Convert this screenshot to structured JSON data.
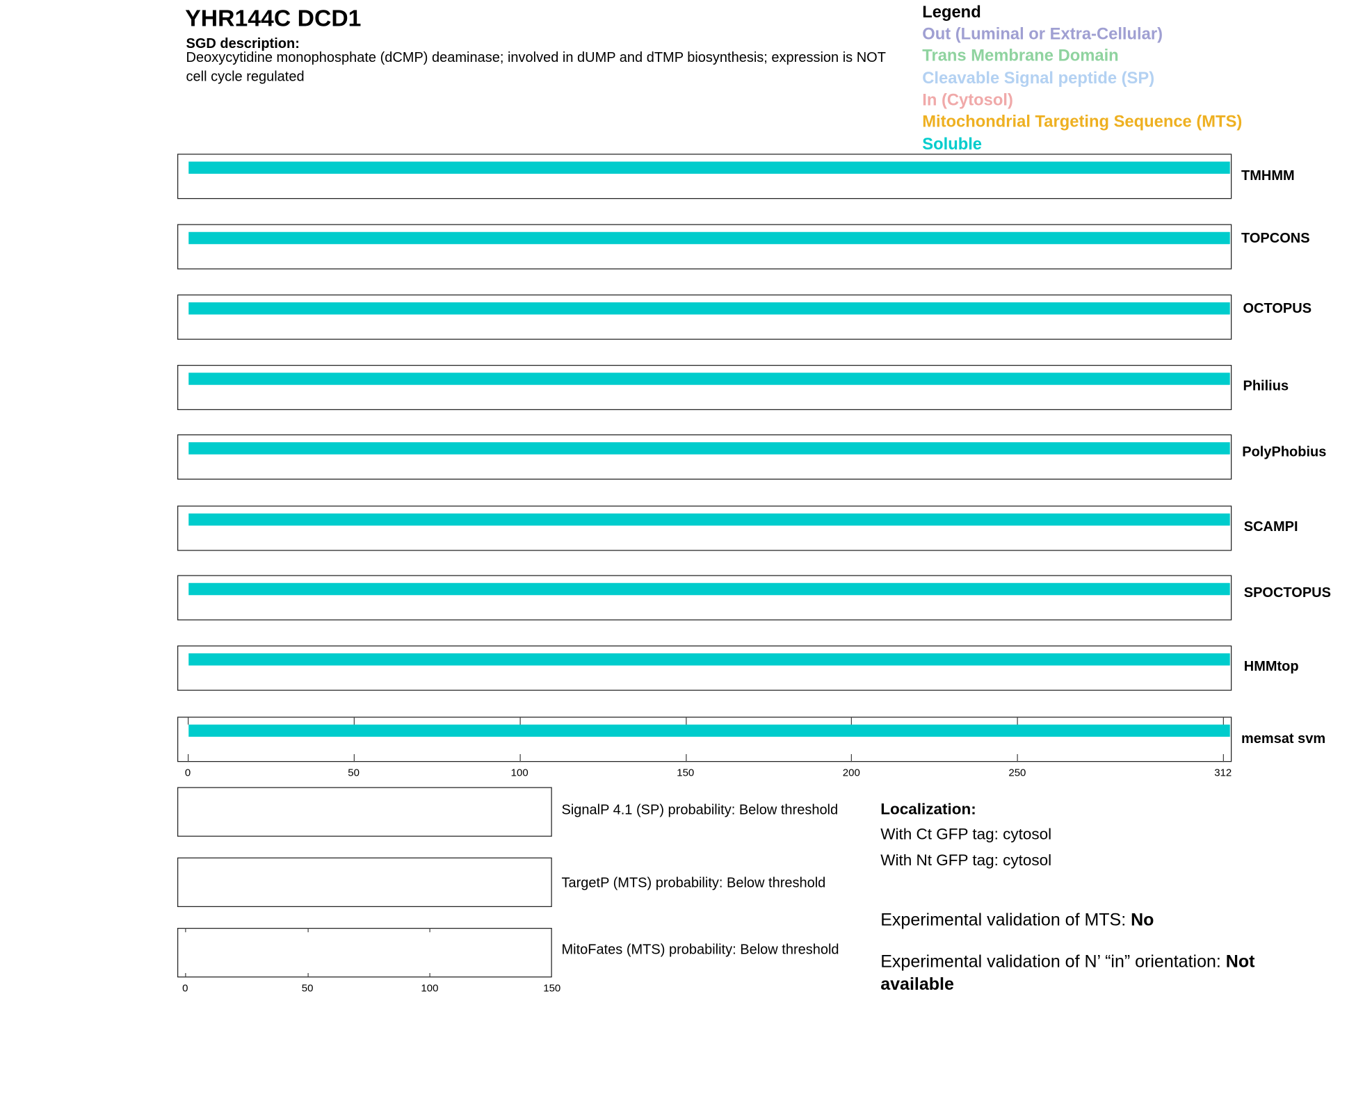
{
  "header": {
    "title": "YHR144C  DCD1",
    "sgd_heading": "SGD description:",
    "sgd_text": "Deoxycytidine monophosphate (dCMP) deaminase; involved in dUMP and dTMP biosynthesis; expression is NOT cell cycle regulated"
  },
  "legend": {
    "title": "Legend",
    "items": [
      {
        "label": "Out (Luminal or Extra-Cellular)",
        "color": "#9f9fd2"
      },
      {
        "label": "Trans Membrane Domain",
        "color": "#8fd39f"
      },
      {
        "label": "Cleavable Signal peptide (SP)",
        "color": "#b3d1f2"
      },
      {
        "label": "In (Cytosol)",
        "color": "#f0a9a9"
      },
      {
        "label": "Mitochondrial Targeting Sequence (MTS)",
        "color": "#eeb021"
      },
      {
        "label": "Soluble",
        "color": "#00cccc"
      }
    ]
  },
  "chart_data": [
    {
      "type": "bar",
      "orientation": "horizontal",
      "xlim": [
        0,
        312
      ],
      "xticks": [
        "0",
        "50",
        "100",
        "150",
        "200",
        "250",
        "312"
      ],
      "tracks": [
        {
          "name": "TMHMM",
          "segments": [
            {
              "start": 1,
              "end": 312,
              "class": "Soluble"
            }
          ]
        },
        {
          "name": "TOPCONS",
          "segments": [
            {
              "start": 1,
              "end": 312,
              "class": "Soluble"
            }
          ]
        },
        {
          "name": "OCTOPUS",
          "segments": [
            {
              "start": 1,
              "end": 312,
              "class": "Soluble"
            }
          ]
        },
        {
          "name": "Philius",
          "segments": [
            {
              "start": 1,
              "end": 312,
              "class": "Soluble"
            }
          ]
        },
        {
          "name": "PolyPhobius",
          "segments": [
            {
              "start": 1,
              "end": 312,
              "class": "Soluble"
            }
          ]
        },
        {
          "name": "SCAMPI",
          "segments": [
            {
              "start": 1,
              "end": 312,
              "class": "Soluble"
            }
          ]
        },
        {
          "name": "SPOCTOPUS",
          "segments": [
            {
              "start": 1,
              "end": 312,
              "class": "Soluble"
            }
          ]
        },
        {
          "name": "HMMtop",
          "segments": [
            {
              "start": 1,
              "end": 312,
              "class": "Soluble"
            }
          ]
        },
        {
          "name": "memsat svm",
          "segments": [
            {
              "start": 1,
              "end": 312,
              "class": "Soluble"
            }
          ]
        }
      ]
    },
    {
      "type": "line",
      "xlim": [
        0,
        150
      ],
      "xticks": [
        "0",
        "50",
        "100",
        "150"
      ],
      "panels": [
        {
          "label": "SignalP 4.1 (SP) probability: Below threshold"
        },
        {
          "label": "TargetP (MTS) probability: Below threshold"
        },
        {
          "label": "MitoFates (MTS) probability: Below threshold"
        }
      ]
    }
  ],
  "localization": {
    "heading": "Localization:",
    "ct": "With Ct GFP tag: cytosol",
    "nt": "With Nt GFP tag: cytosol"
  },
  "experimental": {
    "mts_label": "Experimental validation of MTS: ",
    "mts_value": "No",
    "orient_label": "Experimental validation of N’ “in” orientation: ",
    "orient_value": "Not available"
  }
}
